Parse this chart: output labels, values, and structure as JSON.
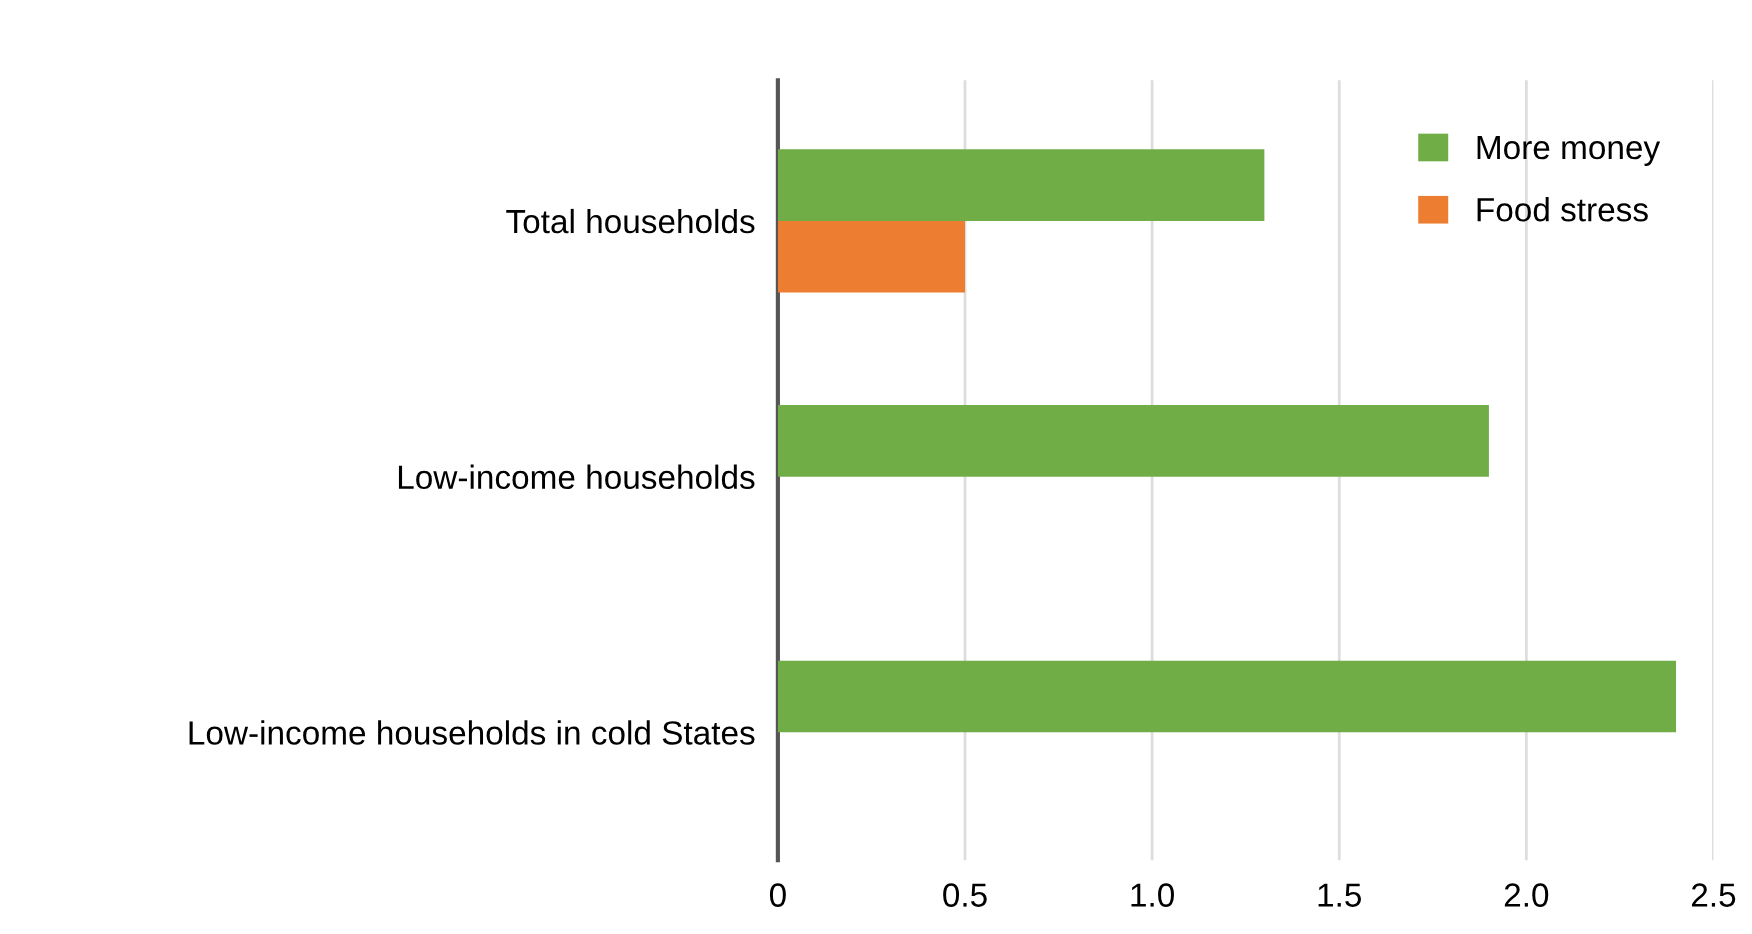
{
  "chart_data": {
    "type": "bar",
    "orientation": "horizontal",
    "categories": [
      "Total households",
      "Low-income households",
      "Low-income households in cold States"
    ],
    "series": [
      {
        "name": "More money",
        "color": "#70ad47",
        "values": [
          1.3,
          1.9,
          2.4
        ]
      },
      {
        "name": "Food stress",
        "color": "#ed7d31",
        "values": [
          0.5,
          null,
          null
        ]
      }
    ],
    "xlim": [
      0,
      2.5
    ],
    "xticks": [
      {
        "value": 0,
        "label": "0"
      },
      0.5,
      {
        "value": 1,
        "label": "1.0"
      },
      1.5,
      {
        "value": 2,
        "label": "2.0"
      },
      2.5
    ],
    "grid": "x",
    "legend": "top right"
  }
}
